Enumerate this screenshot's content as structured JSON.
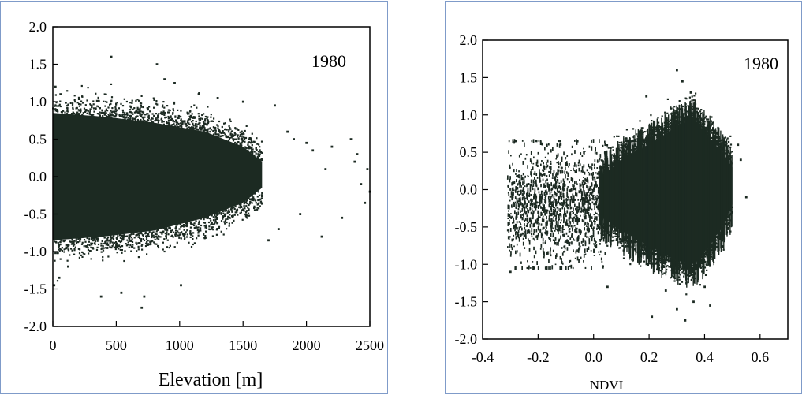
{
  "chart_data": [
    {
      "type": "scatter",
      "annotation": "1980",
      "xlabel": "Elevation [m]",
      "ylabel": "",
      "xlim": [
        0,
        2500
      ],
      "ylim": [
        -2.0,
        2.0
      ],
      "xticks": [
        0,
        500,
        1000,
        1500,
        2000,
        2500
      ],
      "xtick_labels": [
        "0",
        "500",
        "1000",
        "1500",
        "2000",
        "2500"
      ],
      "yticks": [
        -2.0,
        -1.5,
        -1.0,
        -0.5,
        0.0,
        0.5,
        1.0,
        1.5,
        2.0
      ],
      "ytick_labels": [
        "-2.0",
        "-1.5",
        "-1.0",
        "-0.5",
        "0.0",
        "0.5",
        "1.0",
        "1.5",
        "2.0"
      ],
      "grid": false,
      "marker_color": "#1c2a22",
      "dense_band": [
        {
          "x": 0,
          "y_low": -0.85,
          "y_high": 0.85
        },
        {
          "x": 400,
          "y_low": -0.8,
          "y_high": 0.8
        },
        {
          "x": 800,
          "y_low": -0.72,
          "y_high": 0.72
        },
        {
          "x": 1200,
          "y_low": -0.55,
          "y_high": 0.6
        },
        {
          "x": 1500,
          "y_low": -0.35,
          "y_high": 0.4
        },
        {
          "x": 1650,
          "y_low": -0.15,
          "y_high": 0.2
        }
      ],
      "points": [
        [
          20,
          1.2
        ],
        [
          60,
          1.1
        ],
        [
          120,
          -1.2
        ],
        [
          10,
          -1.45
        ],
        [
          50,
          -1.35
        ],
        [
          380,
          -1.6
        ],
        [
          460,
          1.6
        ],
        [
          540,
          -1.55
        ],
        [
          700,
          -1.75
        ],
        [
          720,
          -1.6
        ],
        [
          820,
          1.5
        ],
        [
          880,
          1.3
        ],
        [
          960,
          1.25
        ],
        [
          1010,
          -1.45
        ],
        [
          1150,
          1.1
        ],
        [
          1300,
          1.05
        ],
        [
          1500,
          1.0
        ],
        [
          1700,
          -0.85
        ],
        [
          1750,
          0.95
        ],
        [
          1780,
          -0.7
        ],
        [
          1850,
          0.6
        ],
        [
          1900,
          0.5
        ],
        [
          1950,
          -0.5
        ],
        [
          2000,
          0.45
        ],
        [
          2050,
          0.35
        ],
        [
          2120,
          -0.8
        ],
        [
          2200,
          0.4
        ],
        [
          2280,
          -0.55
        ],
        [
          2350,
          0.5
        ],
        [
          2400,
          0.3
        ],
        [
          2430,
          -0.1
        ],
        [
          2480,
          0.1
        ],
        [
          2500,
          -0.2
        ],
        [
          2460,
          -0.35
        ],
        [
          2380,
          0.2
        ],
        [
          2150,
          0.1
        ]
      ]
    },
    {
      "type": "scatter",
      "annotation": "1980",
      "xlabel": "NDVI",
      "ylabel": "",
      "xlim": [
        -0.4,
        0.7
      ],
      "ylim": [
        -2.0,
        2.0
      ],
      "xticks": [
        -0.4,
        -0.2,
        0.0,
        0.2,
        0.4,
        0.6
      ],
      "xtick_labels": [
        "-0.4",
        "-0.2",
        "0.0",
        "0.2",
        "0.4",
        "0.6"
      ],
      "yticks": [
        -2.0,
        -1.5,
        -1.0,
        -0.5,
        0.0,
        0.5,
        1.0,
        1.5,
        2.0
      ],
      "ytick_labels": [
        "-2.0",
        "-1.5",
        "-1.0",
        "-0.5",
        "0.0",
        "0.5",
        "1.0",
        "1.5",
        "2.0"
      ],
      "grid": false,
      "marker_color": "#1c2a22",
      "sparse_region": {
        "x_range": [
          -0.31,
          0.05
        ],
        "y_range": [
          -1.05,
          0.65
        ]
      },
      "dense_blob": [
        {
          "x": 0.02,
          "y_low": -0.35,
          "y_high": 0.15
        },
        {
          "x": 0.1,
          "y_low": -0.55,
          "y_high": 0.4
        },
        {
          "x": 0.2,
          "y_low": -0.75,
          "y_high": 0.6
        },
        {
          "x": 0.3,
          "y_low": -0.95,
          "y_high": 0.85
        },
        {
          "x": 0.36,
          "y_low": -1.0,
          "y_high": 0.95
        },
        {
          "x": 0.42,
          "y_low": -0.75,
          "y_high": 0.7
        },
        {
          "x": 0.47,
          "y_low": -0.45,
          "y_high": 0.45
        },
        {
          "x": 0.5,
          "y_low": -0.2,
          "y_high": 0.3
        }
      ],
      "points": [
        [
          0.3,
          1.6
        ],
        [
          0.32,
          1.45
        ],
        [
          0.19,
          1.25
        ],
        [
          0.35,
          1.3
        ],
        [
          0.21,
          -1.7
        ],
        [
          0.33,
          -1.75
        ],
        [
          0.3,
          -1.6
        ],
        [
          0.36,
          -1.5
        ],
        [
          0.42,
          -1.55
        ],
        [
          0.05,
          -1.3
        ],
        [
          -0.3,
          -1.1
        ],
        [
          -0.28,
          0.65
        ],
        [
          0.52,
          0.6
        ],
        [
          0.53,
          0.4
        ],
        [
          0.55,
          -0.1
        ],
        [
          0.26,
          -1.35
        ],
        [
          0.4,
          -1.3
        ]
      ]
    }
  ]
}
